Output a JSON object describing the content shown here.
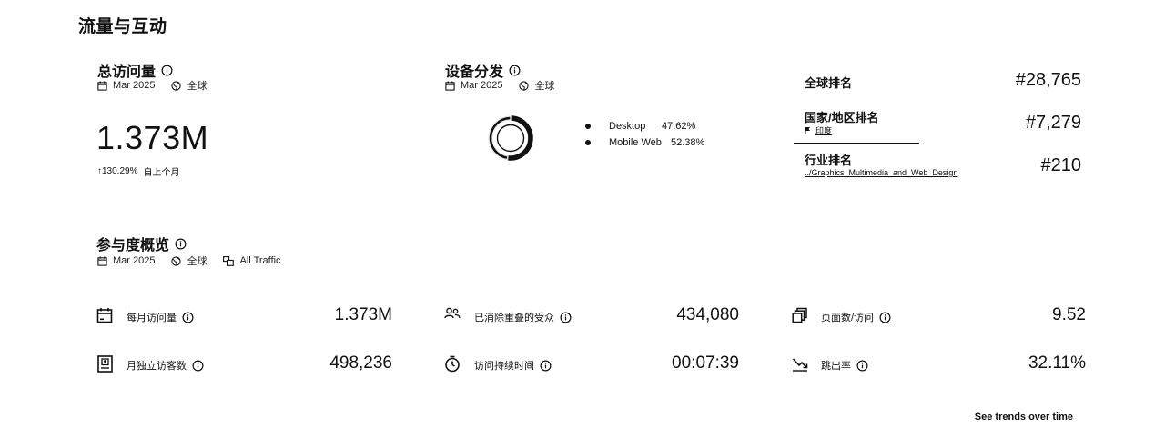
{
  "page": {
    "section_title": "流量与互动"
  },
  "total_visits": {
    "title": "总访问量",
    "period": "Mar 2025",
    "region": "全球",
    "value": "1.373M",
    "change": "↑130.29%",
    "change_label": "自上个月"
  },
  "device": {
    "title": "设备分发",
    "period": "Mar 2025",
    "region": "全球",
    "items": [
      {
        "name": "Desktop",
        "pct": "47.62%",
        "value": 47.62
      },
      {
        "name": "Mobile Web",
        "pct": "52.38%",
        "value": 52.38
      }
    ]
  },
  "ranks": {
    "global": {
      "label": "全球排名",
      "value": "#28,765"
    },
    "country": {
      "label": "国家/地区排名",
      "sub": "印度",
      "value": "#7,279"
    },
    "industry": {
      "label": "行业排名",
      "sub": "../Graphics_Multimedia_and_Web_Design",
      "value": "#210"
    }
  },
  "engagement": {
    "title": "参与度概览",
    "period": "Mar 2025",
    "region": "全球",
    "traffic": "All Traffic",
    "metrics": [
      {
        "icon": "calendar-icon",
        "label": "每月访问量",
        "value": "1.373M"
      },
      {
        "icon": "users-icon",
        "label": "已消除重叠的受众",
        "value": "434,080"
      },
      {
        "icon": "pages-icon",
        "label": "页面数/访问",
        "value": "9.52"
      },
      {
        "icon": "visitor-card-icon",
        "label": "月独立访客数",
        "value": "498,236"
      },
      {
        "icon": "timer-icon",
        "label": "访问持续时间",
        "value": "00:07:39"
      },
      {
        "icon": "bounce-icon",
        "label": "跳出率",
        "value": "32.11%"
      }
    ]
  },
  "footer": {
    "link": "See trends over time"
  }
}
